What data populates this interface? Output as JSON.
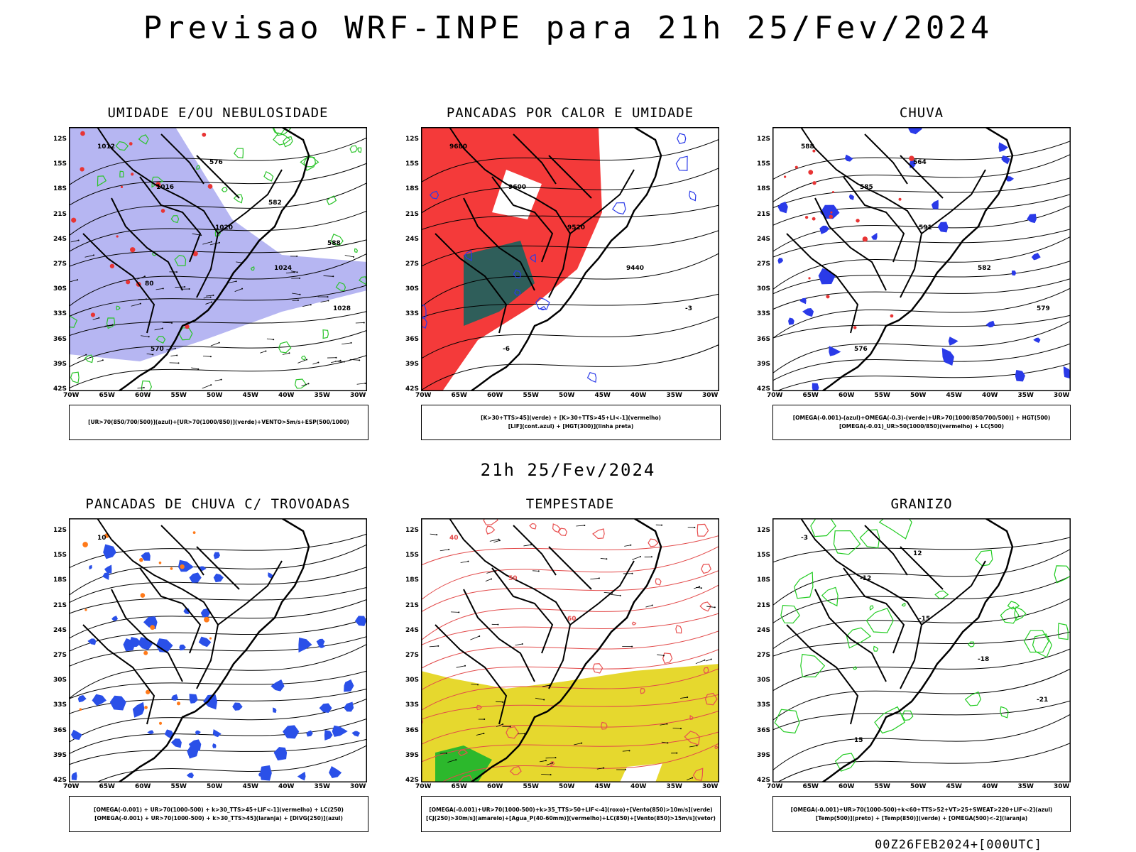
{
  "main_title": "Previsao WRF-INPE  para 21h 25/Fev/2024",
  "mid_title": "21h 25/Fev/2024",
  "footer": "00Z26FEB2024+[000UTC]",
  "latitudes": [
    "12S",
    "15S",
    "18S",
    "21S",
    "24S",
    "27S",
    "30S",
    "33S",
    "36S",
    "39S",
    "42S"
  ],
  "longitudes": [
    "70W",
    "65W",
    "60W",
    "55W",
    "50W",
    "45W",
    "40W",
    "35W",
    "30W"
  ],
  "panels": [
    {
      "title": "UMIDADE E/OU NEBULOSIDADE",
      "legend": [
        "[UR>70(850/700/500)](azul)+[UR>70(1000/850)](verde)+VENTO>5m/s+ESP(500/1000)"
      ],
      "labels": [
        "1012",
        "1016",
        "1020",
        "1024",
        "1028",
        "570",
        "576",
        "582",
        "588",
        "80"
      ]
    },
    {
      "title": "PANCADAS POR CALOR E UMIDADE",
      "legend": [
        "[K>30+TTS>45](verde) + [K>30+TTS>45+LI<-1](vermelho)",
        "[LIF](cont.azul) + [HGT(300)](linha preta)"
      ],
      "labels": [
        "9680",
        "9600",
        "9520",
        "9440",
        "-3",
        "-6"
      ]
    },
    {
      "title": "CHUVA",
      "legend": [
        "[OMEGA(-0.001)-(azul)+OMEGA(-0.3)-(verde)+UR>70(1000/850/700/500)] + HGT(500)",
        "[OMEGA(-0.01)_UR>50(1000/850)(vermelho) + LC(500)"
      ],
      "labels": [
        "588",
        "585",
        "591",
        "582",
        "579",
        "576",
        "564"
      ]
    },
    {
      "title": "PANCADAS DE CHUVA C/ TROVOADAS",
      "legend": [
        "[OMEGA(-0.001) + UR>70(1000-500) + k>30_TTS>45+LIF<-1](vermelho) + LC(250)",
        "[OMEGA(-0.001) + UR>70(1000-500) + k>30_TTS>45](laranja) + [DIVG(250)](azul)"
      ],
      "labels": [
        "10"
      ]
    },
    {
      "title": "TEMPESTADE",
      "legend": [
        "[OMEGA(-0.001)+UR>70(1000-500)+k>35_TTS>50+LIF<-4](roxo)+[Vento(850)>10m/s](verde)",
        "[CJ(250)>30m/s](amarelo)+[Agua_P(40-60mm)](vermelho)+LC(850)+[Vento(850)>15m/s](vetor)"
      ],
      "labels": [
        "40",
        "50",
        "60"
      ]
    },
    {
      "title": "GRANIZO",
      "legend": [
        "[OMEGA(-0.001)+UR>70(1000-500)+k<60+TTS>52+VT>25+SWEAT>220+LIF<-2](azul)",
        "[Temp(500)](preto) + [Temp(850)](verde) + [OMEGA(500)<-2](laranja)"
      ],
      "labels": [
        "-3",
        "-12",
        "-15",
        "-18",
        "-21",
        "15",
        "12"
      ]
    }
  ]
}
